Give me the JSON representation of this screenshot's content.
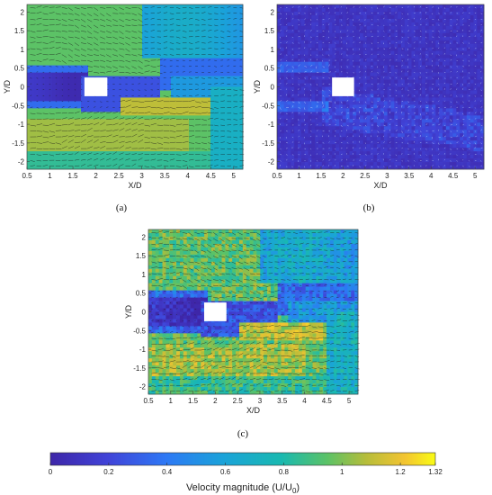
{
  "chart_data": [
    {
      "type": "heatmap",
      "panel": "(a)",
      "xlabel": "X/D",
      "ylabel": "Y/D",
      "xlim": [
        0.5,
        5.2
      ],
      "ylim": [
        -2.2,
        2.2
      ],
      "xticks": [
        "0.5",
        "1",
        "1.5",
        "2",
        "2.5",
        "3",
        "3.5",
        "4",
        "4.5",
        "5"
      ],
      "yticks": [
        "2",
        "1.5",
        "1",
        "0.5",
        "0",
        "-0.5",
        "-1",
        "-1.5",
        "-2"
      ],
      "obstacle": {
        "x": [
          1.75,
          2.25
        ],
        "y": [
          -0.25,
          0.25
        ]
      },
      "field": "smooth"
    },
    {
      "type": "heatmap",
      "panel": "(b)",
      "xlabel": "X/D",
      "ylabel": "Y/D",
      "xlim": [
        0.5,
        5.2
      ],
      "ylim": [
        -2.2,
        2.2
      ],
      "xticks": [
        "0.5",
        "1",
        "1.5",
        "2",
        "2.5",
        "3",
        "3.5",
        "4",
        "4.5",
        "5"
      ],
      "yticks": [
        "2",
        "1.5",
        "1",
        "0.5",
        "0",
        "-0.5",
        "-1",
        "-1.5",
        "-2"
      ],
      "obstacle": {
        "x": [
          1.75,
          2.25
        ],
        "y": [
          -0.25,
          0.25
        ]
      },
      "field": "fluctuation"
    },
    {
      "type": "heatmap",
      "panel": "(c)",
      "xlabel": "X/D",
      "ylabel": "Y/D",
      "xlim": [
        0.5,
        5.2
      ],
      "ylim": [
        -2.2,
        2.2
      ],
      "xticks": [
        "0.5",
        "1",
        "1.5",
        "2",
        "2.5",
        "3",
        "3.5",
        "4",
        "4.5",
        "5"
      ],
      "yticks": [
        "2",
        "1.5",
        "1",
        "0.5",
        "0",
        "-0.5",
        "-1",
        "-1.5",
        "-2"
      ],
      "obstacle": {
        "x": [
          1.75,
          2.25
        ],
        "y": [
          -0.25,
          0.25
        ]
      },
      "field": "instantaneous"
    }
  ],
  "colorbar": {
    "title": "Velocity magnitude (U/U",
    "subscript": "0",
    "title_end": ")",
    "range": [
      0,
      1.32
    ],
    "ticks": [
      "0",
      "0.2",
      "0.4",
      "0.6",
      "0.8",
      "1",
      "1.2",
      "1.32"
    ]
  }
}
